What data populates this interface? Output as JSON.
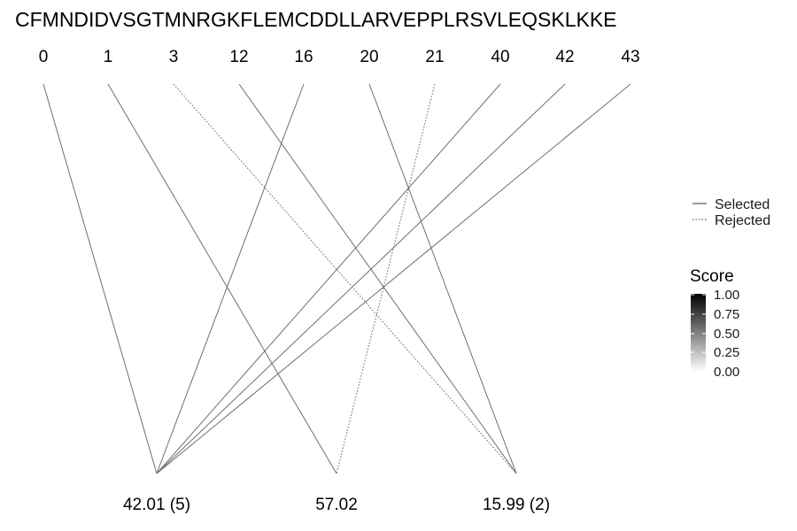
{
  "sequence": "CFMNDIDVSGTMNRGKFLEMCDDLLARVEPPLRSVLEQSKLKKE",
  "positions": [
    "0",
    "1",
    "3",
    "12",
    "16",
    "20",
    "21",
    "40",
    "42",
    "43"
  ],
  "masses": [
    "42.01 (5)",
    "57.02",
    "15.99 (2)"
  ],
  "links": [
    {
      "from": 0,
      "to": 0,
      "status": "selected"
    },
    {
      "from": 1,
      "to": 1,
      "status": "selected"
    },
    {
      "from": 2,
      "to": 2,
      "status": "rejected"
    },
    {
      "from": 3,
      "to": 2,
      "status": "selected"
    },
    {
      "from": 4,
      "to": 0,
      "status": "selected"
    },
    {
      "from": 5,
      "to": 2,
      "status": "selected"
    },
    {
      "from": 6,
      "to": 1,
      "status": "rejected"
    },
    {
      "from": 7,
      "to": 0,
      "status": "selected"
    },
    {
      "from": 8,
      "to": 0,
      "status": "selected"
    },
    {
      "from": 9,
      "to": 0,
      "status": "selected"
    }
  ],
  "legend": {
    "linetype": {
      "selected": "Selected",
      "rejected": "Rejected"
    },
    "score": {
      "title": "Score",
      "ticks": [
        "1.00",
        "0.75",
        "0.50",
        "0.25",
        "0.00"
      ]
    }
  },
  "colors": {
    "line": "#6e6e6e",
    "score_high": "#000000",
    "score_low": "#ffffff"
  }
}
